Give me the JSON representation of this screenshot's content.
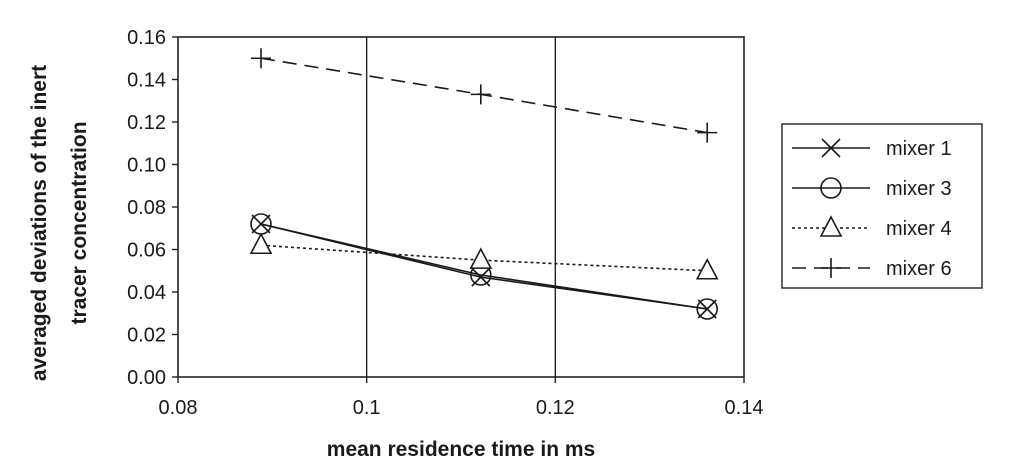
{
  "chart_data": {
    "type": "line",
    "title": "",
    "xlabel": "mean residence time in ms",
    "ylabel": [
      "averaged deviations of the inert",
      "tracer concentration"
    ],
    "xlim": [
      0.08,
      0.14
    ],
    "ylim": [
      0,
      0.16
    ],
    "x_ticks": [
      0.08,
      0.1,
      0.12,
      0.14
    ],
    "x_tick_labels": [
      "0.08",
      "0.1",
      "0.12",
      "0.14"
    ],
    "y_ticks": [
      0,
      0.02,
      0.04,
      0.06,
      0.08,
      0.1,
      0.12,
      0.14,
      0.16
    ],
    "y_tick_labels": [
      "0.00",
      "0.02",
      "0.04",
      "0.06",
      "0.08",
      "0.10",
      "0.12",
      "0.14",
      "0.16"
    ],
    "grid": "vertical lines at x ticks",
    "legend_position": "right",
    "series": [
      {
        "name": "mixer 1",
        "marker": "x",
        "line": "solid",
        "x": [
          0.0888,
          0.1121,
          0.1361
        ],
        "y": [
          0.072,
          0.047,
          0.032
        ]
      },
      {
        "name": "mixer 3",
        "marker": "circle",
        "line": "solid",
        "x": [
          0.0888,
          0.1121,
          0.1361
        ],
        "y": [
          0.072,
          0.048,
          0.032
        ]
      },
      {
        "name": "mixer 4",
        "marker": "triangle",
        "line": "dotted",
        "x": [
          0.0888,
          0.1121,
          0.1361
        ],
        "y": [
          0.062,
          0.055,
          0.05
        ]
      },
      {
        "name": "mixer 6",
        "marker": "plus",
        "line": "dashed",
        "x": [
          0.0888,
          0.1121,
          0.1361
        ],
        "y": [
          0.15,
          0.133,
          0.115
        ]
      }
    ]
  }
}
